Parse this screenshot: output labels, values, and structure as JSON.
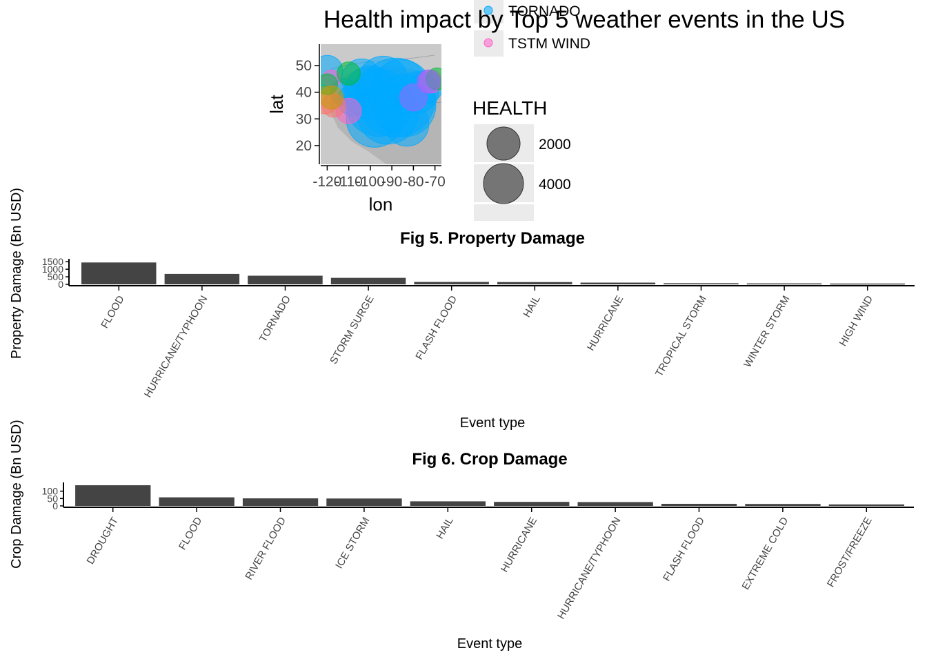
{
  "chart_data": [
    {
      "type": "scatter",
      "title": "Health impact by Top 5 weather events in the US",
      "xlabel": "lon",
      "ylabel": "lat",
      "xlim": [
        -123,
        -67
      ],
      "ylim": [
        13,
        58
      ],
      "x_ticks": [
        "-120",
        "-110",
        "-100",
        "-90",
        "-80",
        "-70"
      ],
      "y_ticks": [
        "20",
        "30",
        "40",
        "50"
      ],
      "x_tick_values": [
        -120,
        -110,
        -100,
        -90,
        -80,
        -70
      ],
      "y_tick_values": [
        20,
        30,
        40,
        50
      ],
      "legend": {
        "placement": "right",
        "color_entries": [
          {
            "label": "TORNADO",
            "color": "#00A9FF"
          },
          {
            "label": "TSTM WIND",
            "color": "#FF61CC"
          }
        ],
        "size_title": "HEALTH",
        "size_entries": [
          {
            "label": "2000",
            "value": 2000
          },
          {
            "label": "4000",
            "value": 4000
          }
        ]
      },
      "series": [
        {
          "name": "TORNADO",
          "color": "#00A9FF",
          "points": [
            {
              "lon": -88,
              "lat": 38,
              "health": 5800
            },
            {
              "lon": -96,
              "lat": 36,
              "health": 4200
            },
            {
              "lon": -92,
              "lat": 32,
              "health": 3500
            },
            {
              "lon": -84,
              "lat": 35,
              "health": 3600
            },
            {
              "lon": -100,
              "lat": 40,
              "health": 2600
            },
            {
              "lon": -98,
              "lat": 30,
              "health": 3000
            },
            {
              "lon": -86,
              "lat": 42,
              "health": 2800
            },
            {
              "lon": -94,
              "lat": 44,
              "health": 2400
            },
            {
              "lon": -83,
              "lat": 28,
              "health": 1800
            },
            {
              "lon": -104,
              "lat": 45,
              "health": 1500
            },
            {
              "lon": -120,
              "lat": 48,
              "health": 900
            },
            {
              "lon": -78,
              "lat": 40,
              "health": 1600
            },
            {
              "lon": -74,
              "lat": 42,
              "health": 1000
            },
            {
              "lon": -112,
              "lat": 40,
              "health": 700
            },
            {
              "lon": -108,
              "lat": 37,
              "health": 900
            }
          ]
        },
        {
          "name": "TSTM WIND",
          "color": "#FF61CC",
          "points": [
            {
              "lon": -110,
              "lat": 33,
              "health": 600
            },
            {
              "lon": -118,
              "lat": 45,
              "health": 300
            },
            {
              "lon": -72,
              "lat": 44,
              "health": 500
            }
          ]
        },
        {
          "name": "",
          "color": "#F8766D",
          "points": [
            {
              "lon": -121,
              "lat": 37,
              "health": 700
            },
            {
              "lon": -117,
              "lat": 35,
              "health": 500
            }
          ]
        },
        {
          "name": "",
          "color": "#00BA38",
          "points": [
            {
              "lon": -110,
              "lat": 47,
              "health": 500
            },
            {
              "lon": -120,
              "lat": 43,
              "health": 400
            },
            {
              "lon": -69,
              "lat": 45,
              "health": 450
            }
          ]
        },
        {
          "name": "",
          "color": "#C49A00",
          "points": [
            {
              "lon": -118,
              "lat": 38,
              "health": 500
            }
          ]
        },
        {
          "name": "",
          "color": "#9966FF",
          "points": [
            {
              "lon": -80,
              "lat": 38,
              "health": 700
            },
            {
              "lon": -73,
              "lat": 44,
              "health": 500
            }
          ]
        }
      ]
    },
    {
      "type": "bar",
      "title": "Fig 5. Property Damage",
      "xlabel": "Event type",
      "ylabel": "Property Damage (Bn USD)",
      "ylim": [
        0,
        1600
      ],
      "y_ticks": [
        "0",
        "500",
        "1000",
        "1500"
      ],
      "y_tick_values": [
        0,
        500,
        1000,
        1500
      ],
      "categories": [
        "FLOOD",
        "HURRICANE/TYPHOON",
        "TORNADO",
        "STORM SURGE",
        "FLASH FLOOD",
        "HAIL",
        "HURRICANE",
        "TROPICAL STORM",
        "WINTER STORM",
        "HIGH WIND"
      ],
      "values": [
        1450,
        690,
        570,
        430,
        160,
        150,
        115,
        75,
        65,
        55
      ]
    },
    {
      "type": "bar",
      "title": "Fig 6. Crop Damage",
      "xlabel": "Event type",
      "ylabel": "Crop Damage (Bn USD)",
      "ylim": [
        0,
        150
      ],
      "y_ticks": [
        "0",
        "50",
        "100"
      ],
      "y_tick_values": [
        0,
        50,
        100
      ],
      "categories": [
        "DROUGHT",
        "FLOOD",
        "RIVER FLOOD",
        "ICE STORM",
        "HAIL",
        "HURRICANE",
        "HURRICANE/TYPHOON",
        "FLASH FLOOD",
        "EXTREME COLD",
        "FROST/FREEZE"
      ],
      "values": [
        140,
        58,
        51,
        50,
        31,
        27,
        26,
        14,
        13,
        10
      ]
    }
  ]
}
